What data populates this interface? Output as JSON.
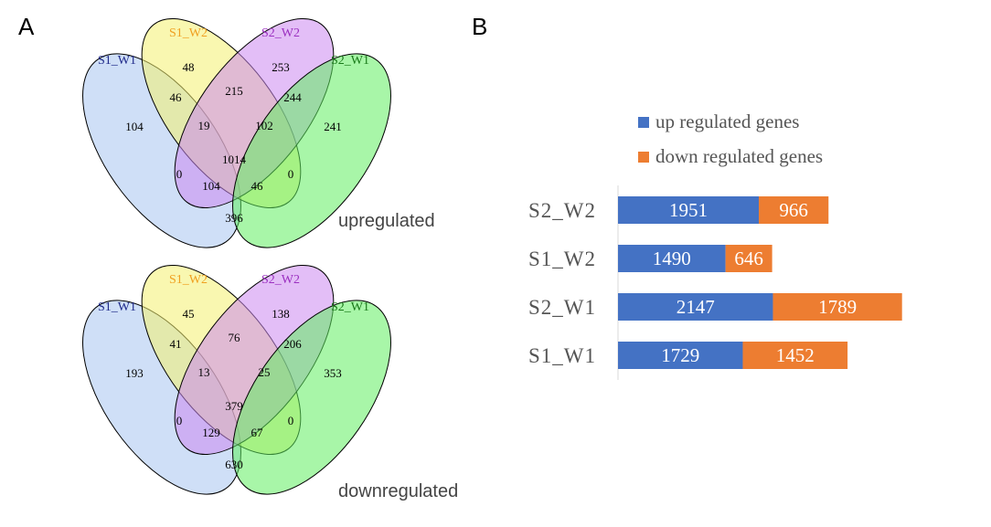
{
  "panels": {
    "a": "A",
    "b": "B"
  },
  "colors": {
    "S1_W1": "#1f2a8a",
    "S1_W2": "#f0a020",
    "S2_W2": "#9b30c0",
    "S2_W1": "#1a7a1a",
    "fill_S1_W1": "#a8c4f0",
    "fill_S1_W2": "#f4f070",
    "fill_S2_W2": "#cc88f0",
    "fill_S2_W1": "#60ee60",
    "up": "#4472c4",
    "down": "#ed7d31"
  },
  "venn": [
    {
      "title": "upregulated",
      "set_labels": [
        "S1_W1",
        "S1_W2",
        "S2_W2",
        "S2_W1"
      ],
      "regions": {
        "only_S1_W1": 104,
        "only_S1_W2": 48,
        "only_S2_W2": 253,
        "only_S2_W1": 241,
        "S1_W1__S1_W2": 46,
        "S1_W2__S2_W2": 215,
        "S2_W2__S2_W1": 244,
        "S1_W1__S1_W2__S2_W2": 19,
        "S1_W2__S2_W2__S2_W1": 102,
        "all": 1014,
        "S1_W1__S2_W2": 0,
        "S1_W2__S2_W1": 0,
        "S1_W1__S2_W2__S2_W1": 104,
        "S1_W1__S1_W2__S2_W1": 46,
        "S1_W1__S2_W1": 396
      }
    },
    {
      "title": "downregulated",
      "set_labels": [
        "S1_W1",
        "S1_W2",
        "S2_W2",
        "S2_W1"
      ],
      "regions": {
        "only_S1_W1": 193,
        "only_S1_W2": 45,
        "only_S2_W2": 138,
        "only_S2_W1": 353,
        "S1_W1__S1_W2": 41,
        "S1_W2__S2_W2": 76,
        "S2_W2__S2_W1": 206,
        "S1_W1__S1_W2__S2_W2": 13,
        "S1_W2__S2_W2__S2_W1": 25,
        "all": 379,
        "S1_W1__S2_W2": 0,
        "S1_W2__S2_W1": 0,
        "S1_W1__S2_W2__S2_W1": 129,
        "S1_W1__S1_W2__S2_W1": 67,
        "S1_W1__S2_W1": 630
      }
    }
  ],
  "chart_data": {
    "type": "bar",
    "stacked": true,
    "orientation": "horizontal",
    "categories": [
      "S2_W2",
      "S1_W2",
      "S2_W1",
      "S1_W1"
    ],
    "series": [
      {
        "name": "up regulated genes",
        "values": [
          1951,
          1490,
          2147,
          1729
        ],
        "color": "#4472c4"
      },
      {
        "name": "down regulated genes",
        "values": [
          966,
          646,
          1789,
          1452
        ],
        "color": "#ed7d31"
      }
    ],
    "legend_position": "top-right",
    "grid": false
  }
}
